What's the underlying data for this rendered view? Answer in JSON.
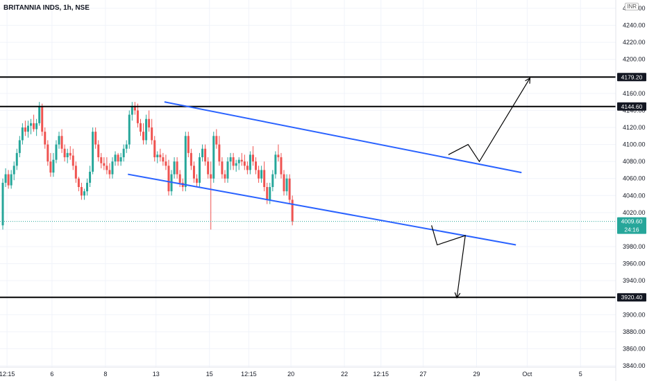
{
  "header": {
    "symbol_title": "BRITANNIA INDS, 1h, NSE",
    "currency": "INR"
  },
  "colors": {
    "up": "#26a69a",
    "down": "#ef5350",
    "channel": "#2962ff",
    "level": "#000000",
    "grid": "#f0f3fa",
    "last_price_bg": "#26a69a",
    "level_badge_bg": "#131722"
  },
  "chart_data": {
    "type": "candlestick",
    "title": "BRITANNIA INDS, 1h, NSE",
    "ylim": [
      3830,
      4260
    ],
    "y_ticks": [
      4260,
      4240,
      4220,
      4200,
      4180,
      4160,
      4140,
      4120,
      4100,
      4080,
      4060,
      4040,
      4020,
      4000,
      3980,
      3960,
      3940,
      3920,
      3900,
      3880,
      3860,
      3840
    ],
    "y_tick_labels": [
      "4260.00",
      "4240.00",
      "4220.00",
      "4200.00",
      "4180.00",
      "4160.00",
      "4140.00",
      "4120.00",
      "4100.00",
      "4080.00",
      "4060.00",
      "4040.00",
      "4020.00",
      "4000.00",
      "3980.00",
      "3960.00",
      "3940.00",
      "3920.00",
      "3900.00",
      "3880.00",
      "3860.00",
      "3840.00"
    ],
    "x_ticks": [
      {
        "label": "12:15",
        "bar": 2
      },
      {
        "label": "6",
        "bar": 18
      },
      {
        "label": "8",
        "bar": 37
      },
      {
        "label": "13",
        "bar": 55
      },
      {
        "label": "15",
        "bar": 74
      },
      {
        "label": "12:15",
        "bar": 88
      },
      {
        "label": "20",
        "bar": 103
      },
      {
        "label": "22",
        "bar": 122
      },
      {
        "label": "12:15",
        "bar": 135
      },
      {
        "label": "27",
        "bar": 150
      },
      {
        "label": "29",
        "bar": 169
      },
      {
        "label": "Oct",
        "bar": 187
      },
      {
        "label": "5",
        "bar": 206
      }
    ],
    "candles": [
      [
        4005,
        4060,
        4000,
        4055
      ],
      [
        4055,
        4072,
        4050,
        4065
      ],
      [
        4065,
        4070,
        4048,
        4052
      ],
      [
        4052,
        4070,
        4048,
        4065
      ],
      [
        4065,
        4080,
        4058,
        4075
      ],
      [
        4075,
        4095,
        4070,
        4090
      ],
      [
        4090,
        4110,
        4085,
        4105
      ],
      [
        4105,
        4125,
        4100,
        4120
      ],
      [
        4120,
        4128,
        4110,
        4115
      ],
      [
        4115,
        4128,
        4108,
        4122
      ],
      [
        4122,
        4130,
        4112,
        4125
      ],
      [
        4125,
        4135,
        4115,
        4118
      ],
      [
        4118,
        4130,
        4110,
        4125
      ],
      [
        4125,
        4150,
        4122,
        4145
      ],
      [
        4145,
        4148,
        4110,
        4115
      ],
      [
        4115,
        4120,
        4095,
        4100
      ],
      [
        4100,
        4105,
        4075,
        4080
      ],
      [
        4080,
        4090,
        4062,
        4067
      ],
      [
        4067,
        4090,
        4062,
        4082
      ],
      [
        4082,
        4105,
        4078,
        4100
      ],
      [
        4100,
        4115,
        4095,
        4110
      ],
      [
        4110,
        4118,
        4090,
        4095
      ],
      [
        4095,
        4100,
        4080,
        4085
      ],
      [
        4085,
        4095,
        4078,
        4090
      ],
      [
        4090,
        4098,
        4082,
        4087
      ],
      [
        4087,
        4095,
        4070,
        4075
      ],
      [
        4075,
        4080,
        4055,
        4060
      ],
      [
        4060,
        4062,
        4045,
        4050
      ],
      [
        4050,
        4055,
        4035,
        4040
      ],
      [
        4040,
        4048,
        4035,
        4045
      ],
      [
        4045,
        4060,
        4040,
        4055
      ],
      [
        4055,
        4075,
        4050,
        4068
      ],
      [
        4068,
        4120,
        4065,
        4115
      ],
      [
        4115,
        4120,
        4095,
        4100
      ],
      [
        4100,
        4105,
        4080,
        4085
      ],
      [
        4085,
        4090,
        4072,
        4078
      ],
      [
        4078,
        4085,
        4070,
        4075
      ],
      [
        4075,
        4085,
        4065,
        4070
      ],
      [
        4070,
        4078,
        4060,
        4065
      ],
      [
        4065,
        4085,
        4060,
        4080
      ],
      [
        4080,
        4092,
        4075,
        4088
      ],
      [
        4088,
        4090,
        4075,
        4080
      ],
      [
        4080,
        4090,
        4075,
        4085
      ],
      [
        4085,
        4100,
        4080,
        4095
      ],
      [
        4095,
        4105,
        4090,
        4100
      ],
      [
        4100,
        4140,
        4095,
        4135
      ],
      [
        4135,
        4150,
        4128,
        4145
      ],
      [
        4145,
        4150,
        4135,
        4140
      ],
      [
        4140,
        4148,
        4120,
        4125
      ],
      [
        4125,
        4130,
        4110,
        4115
      ],
      [
        4115,
        4125,
        4100,
        4105
      ],
      [
        4105,
        4135,
        4100,
        4130
      ],
      [
        4130,
        4140,
        4115,
        4120
      ],
      [
        4120,
        4130,
        4100,
        4105
      ],
      [
        4105,
        4110,
        4080,
        4085
      ],
      [
        4085,
        4092,
        4078,
        4088
      ],
      [
        4088,
        4095,
        4080,
        4085
      ],
      [
        4085,
        4090,
        4075,
        4080
      ],
      [
        4080,
        4088,
        4070,
        4075
      ],
      [
        4075,
        4082,
        4040,
        4045
      ],
      [
        4045,
        4070,
        4040,
        4065
      ],
      [
        4065,
        4085,
        4060,
        4080
      ],
      [
        4080,
        4085,
        4060,
        4065
      ],
      [
        4065,
        4070,
        4050,
        4055
      ],
      [
        4055,
        4060,
        4045,
        4050
      ],
      [
        4050,
        4115,
        4045,
        4110
      ],
      [
        4110,
        4115,
        4085,
        4090
      ],
      [
        4090,
        4095,
        4070,
        4075
      ],
      [
        4075,
        4080,
        4055,
        4060
      ],
      [
        4060,
        4065,
        4050,
        4055
      ],
      [
        4055,
        4090,
        4050,
        4085
      ],
      [
        4085,
        4100,
        4080,
        4095
      ],
      [
        4095,
        4100,
        4075,
        4080
      ],
      [
        4080,
        4085,
        4060,
        4065
      ],
      [
        4065,
        4080,
        4000,
        4060
      ],
      [
        4060,
        4115,
        4055,
        4110
      ],
      [
        4110,
        4118,
        4095,
        4100
      ],
      [
        4100,
        4110,
        4075,
        4080
      ],
      [
        4080,
        4085,
        4060,
        4065
      ],
      [
        4065,
        4070,
        4055,
        4060
      ],
      [
        4060,
        4085,
        4055,
        4080
      ],
      [
        4080,
        4090,
        4070,
        4085
      ],
      [
        4085,
        4090,
        4070,
        4075
      ],
      [
        4075,
        4082,
        4068,
        4078
      ],
      [
        4078,
        4085,
        4070,
        4082
      ],
      [
        4082,
        4090,
        4075,
        4080
      ],
      [
        4080,
        4088,
        4070,
        4075
      ],
      [
        4075,
        4080,
        4065,
        4070
      ],
      [
        4070,
        4092,
        4065,
        4088
      ],
      [
        4088,
        4098,
        4075,
        4080
      ],
      [
        4080,
        4085,
        4065,
        4070
      ],
      [
        4070,
        4075,
        4055,
        4060
      ],
      [
        4060,
        4075,
        4055,
        4070
      ],
      [
        4070,
        4080,
        4045,
        4050
      ],
      [
        4050,
        4055,
        4030,
        4035
      ],
      [
        4035,
        4055,
        4030,
        4050
      ],
      [
        4050,
        4070,
        4045,
        4065
      ],
      [
        4065,
        4092,
        4060,
        4088
      ],
      [
        4088,
        4100,
        4080,
        4085
      ],
      [
        4085,
        4090,
        4060,
        4065
      ],
      [
        4065,
        4070,
        4040,
        4045
      ],
      [
        4045,
        4065,
        4040,
        4060
      ],
      [
        4060,
        4065,
        4030,
        4035
      ],
      [
        4035,
        4040,
        4005,
        4009.6
      ]
    ],
    "channel_lines": [
      {
        "name": "upper",
        "from": {
          "bar": 58,
          "y": 4150
        },
        "to": {
          "bar": 185,
          "y": 4067
        }
      },
      {
        "name": "lower",
        "from": {
          "bar": 45,
          "y": 4065
        },
        "to": {
          "bar": 183,
          "y": 3982
        }
      }
    ],
    "levels": [
      {
        "value": 4179.2,
        "label": "4179.20"
      },
      {
        "value": 4144.6,
        "label": "4144.60"
      },
      {
        "value": 3920.4,
        "label": "3920.40"
      }
    ],
    "projections": [
      {
        "name": "bullish-path",
        "points": [
          {
            "bar": 159,
            "y": 4088
          },
          {
            "bar": 166,
            "y": 4100
          },
          {
            "bar": 170,
            "y": 4080
          },
          {
            "bar": 188,
            "y": 4178
          }
        ]
      },
      {
        "name": "bearish-path",
        "points": [
          {
            "bar": 153,
            "y": 4005
          },
          {
            "bar": 155,
            "y": 3982
          },
          {
            "bar": 165,
            "y": 3993
          },
          {
            "bar": 162,
            "y": 3920
          }
        ]
      }
    ],
    "last_price": {
      "value": 4009.6,
      "label": "4009.60",
      "countdown": "24:16"
    }
  }
}
